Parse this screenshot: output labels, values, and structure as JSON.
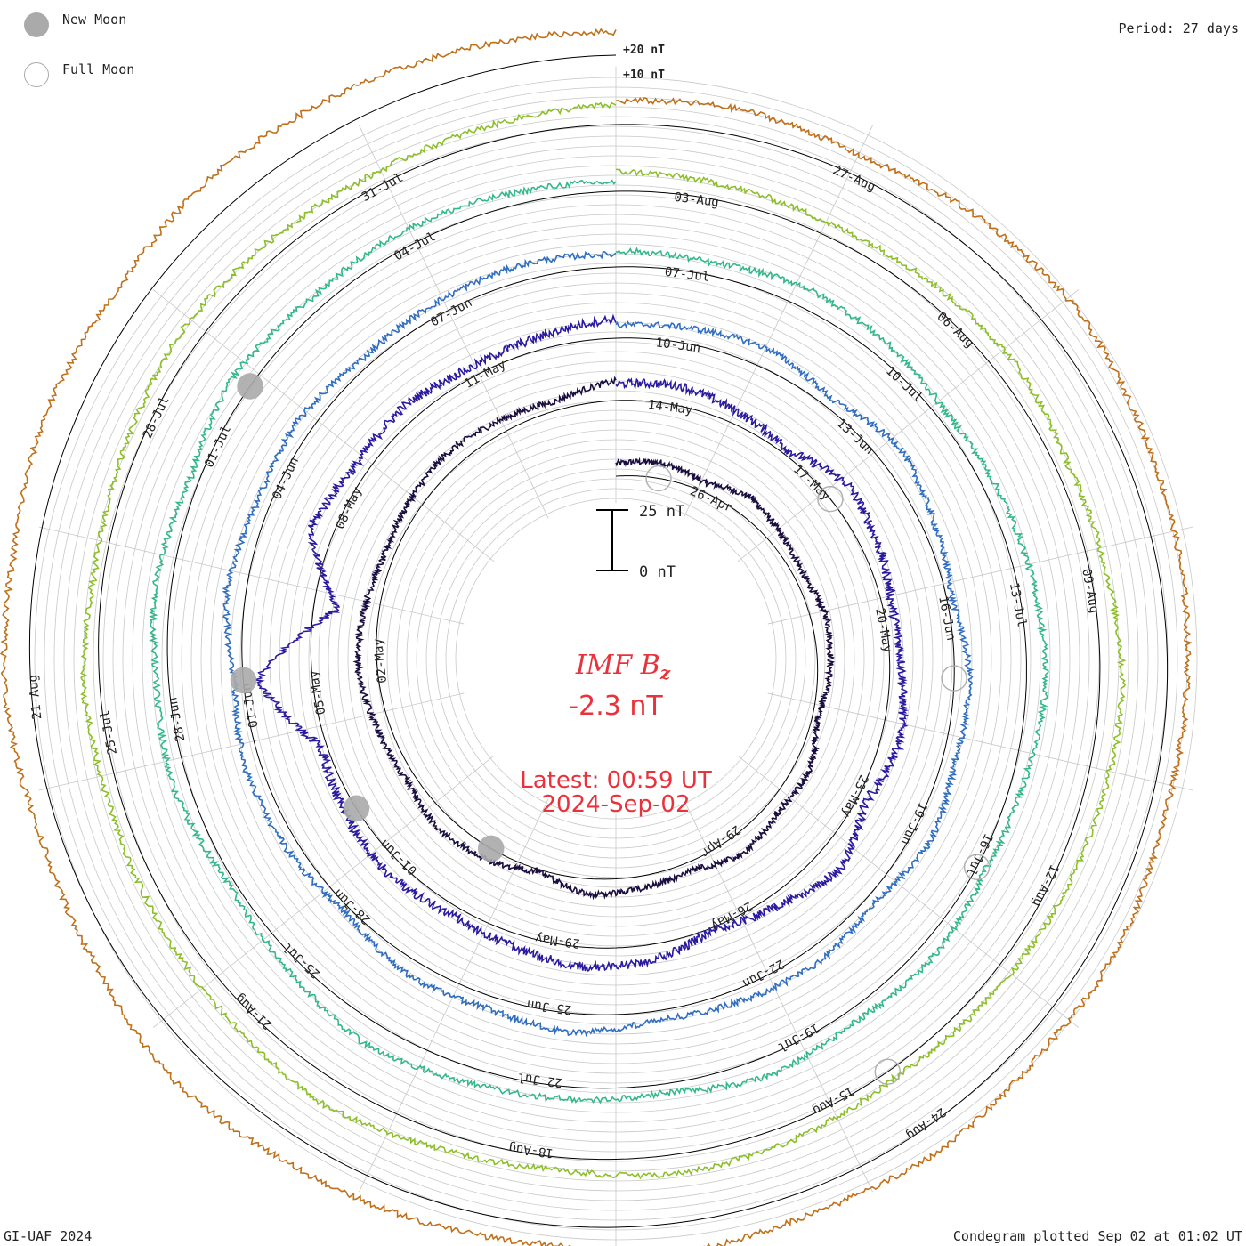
{
  "legend": {
    "new_moon": "New Moon",
    "full_moon": "Full Moon"
  },
  "period_label": "Period: 27 days",
  "credit": "GI-UAF 2024",
  "plotted_label": "Condegram plotted Sep 02 at 01:02 UT",
  "center": {
    "title": "IMF",
    "title_var": "B",
    "title_sub": "z",
    "value": "-2.3 nT",
    "latest": "Latest: 00:59 UT",
    "date": "2024-Sep-02"
  },
  "scale_bar": {
    "top_label": "25 nT",
    "bottom_label": "0 nT",
    "span_nT": 25
  },
  "colors": {
    "new_moon": "#aaaaaa",
    "full_moon": "#aaaaaa",
    "center_text": "#e8323c",
    "grid": "#c8c8c8",
    "baseline": "#000000"
  },
  "chart_data": {
    "type": "condegram",
    "title": "IMF Bz",
    "units": "nT",
    "period_days": 27,
    "start_date": "2024-04-22",
    "end_date": "2024-09-02",
    "reference_labels": [
      "+20 nT",
      "+10 nT"
    ],
    "cycles": [
      {
        "index": 1,
        "color": "#1a0d40",
        "date_labels": [
          "26-Apr",
          "29-Apr",
          "02-May"
        ],
        "trend": [
          0,
          1,
          -1,
          2,
          0,
          -1,
          1,
          0,
          -2,
          1,
          0,
          2,
          -1,
          0,
          1,
          -3,
          0,
          1,
          -1,
          0,
          2,
          1,
          -1,
          0,
          1,
          0,
          -1,
          2
        ]
      },
      {
        "index": 2,
        "color": "#2a1aa0",
        "date_labels": [
          "14-May",
          "17-May",
          "20-May",
          "23-May",
          "26-May",
          "29-May",
          "01-Jun",
          "05-May",
          "08-May",
          "11-May"
        ],
        "trend": [
          1,
          2,
          0,
          -2,
          3,
          1,
          -1,
          0,
          2,
          -1,
          4,
          0,
          -3,
          1,
          2,
          0,
          -1,
          1,
          0,
          -2,
          12,
          -10,
          3,
          0,
          1,
          -1,
          0,
          2
        ]
      },
      {
        "index": 3,
        "color": "#2f6ec0",
        "date_labels": [
          "10-Jun",
          "13-Jun",
          "16-Jun",
          "19-Jun",
          "22-Jun",
          "25-Jun",
          "28-Jun",
          "01-Jun",
          "04-Jun",
          "07-Jun"
        ],
        "trend": [
          0,
          1,
          2,
          -1,
          3,
          0,
          -2,
          1,
          0,
          2,
          -1,
          1,
          0,
          -1,
          2,
          0,
          1,
          -2,
          0,
          1,
          -1,
          2,
          0,
          1,
          -1,
          0,
          1,
          0
        ]
      },
      {
        "index": 4,
        "color": "#33b88a",
        "date_labels": [
          "07-Jul",
          "10-Jul",
          "13-Jul",
          "16-Jul",
          "19-Jul",
          "22-Jul",
          "25-Jul",
          "28-Jun",
          "01-Jul",
          "04-Jul"
        ],
        "trend": [
          1,
          0,
          2,
          1,
          -1,
          0,
          1,
          2,
          0,
          -1,
          1,
          0,
          2,
          -1,
          0,
          1,
          3,
          0,
          -2,
          1,
          0,
          1,
          -1,
          2,
          0,
          1,
          0,
          -1
        ]
      },
      {
        "index": 5,
        "color": "#8cbf2a",
        "date_labels": [
          "03-Aug",
          "06-Aug",
          "09-Aug",
          "12-Aug",
          "15-Aug",
          "18-Aug",
          "21-Aug",
          "25-Jul",
          "28-Jul",
          "31-Jul"
        ],
        "trend": [
          2,
          1,
          0,
          1,
          2,
          0,
          1,
          3,
          2,
          1,
          0,
          -1,
          1,
          2,
          0,
          1,
          4,
          2,
          1,
          0,
          1,
          -1,
          0,
          2,
          1,
          0,
          1,
          2
        ]
      },
      {
        "index": 6,
        "color": "#c0701a",
        "date_labels": [
          "27-Aug",
          "24-Aug",
          "21-Aug"
        ],
        "trend": [
          3,
          4,
          2,
          5,
          6,
          4,
          3,
          2,
          1,
          3,
          2,
          4,
          3,
          5,
          2,
          3,
          4,
          6,
          3,
          2,
          4,
          3,
          5,
          4,
          6,
          5,
          4,
          3
        ]
      }
    ],
    "new_moons": [
      "2024-05-08",
      "2024-06-06",
      "2024-07-05",
      "2024-08-04"
    ],
    "full_moons": [
      "2024-04-23",
      "2024-05-23",
      "2024-06-22",
      "2024-07-21",
      "2024-08-19"
    ]
  }
}
